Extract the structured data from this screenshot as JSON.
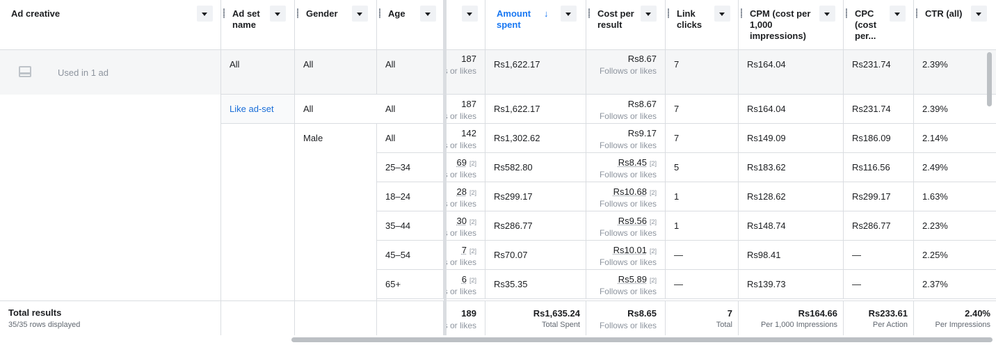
{
  "headers": {
    "ad_creative": "Ad creative",
    "ad_set_name": "Ad set\nname",
    "gender": "Gender",
    "age": "Age",
    "amount_spent": "Amount\nspent",
    "sort_arrow": "↓",
    "cost_per_result": "Cost per\nresult",
    "link_clicks": "Link\nclicks",
    "cpm": "CPM (cost per\n1,000\nimpressions)",
    "cpc": "CPC\n(cost\nper...",
    "ctr": "CTR (all)"
  },
  "creative_row": {
    "label": "Used in 1 ad",
    "ad_set": "All",
    "gender": "All",
    "age": "All",
    "results": "187",
    "results_sub": "s or likes",
    "amount": "Rs1,622.17",
    "cost": "Rs8.67",
    "cost_sub": "Follows or likes",
    "clicks": "7",
    "cpm": "Rs164.04",
    "cpc": "Rs231.74",
    "ctr": "2.39%"
  },
  "rows": [
    {
      "ad_set": "Like ad-set",
      "gender": "All",
      "age": "All",
      "results": "187",
      "flag": "",
      "amount": "Rs1,622.17",
      "cost": "Rs8.67",
      "cost_flag": "",
      "clicks": "7",
      "cpm": "Rs164.04",
      "cpc": "Rs231.74",
      "ctr": "2.39%"
    },
    {
      "ad_set": "",
      "gender": "Male",
      "age": "All",
      "results": "142",
      "flag": "",
      "amount": "Rs1,302.62",
      "cost": "Rs9.17",
      "cost_flag": "",
      "clicks": "7",
      "cpm": "Rs149.09",
      "cpc": "Rs186.09",
      "ctr": "2.14%"
    },
    {
      "ad_set": "",
      "gender": "",
      "age": "25–34",
      "results": "69",
      "flag": "[2]",
      "amount": "Rs582.80",
      "cost": "Rs8.45",
      "cost_flag": "[2]",
      "clicks": "5",
      "cpm": "Rs183.62",
      "cpc": "Rs116.56",
      "ctr": "2.49%"
    },
    {
      "ad_set": "",
      "gender": "",
      "age": "18–24",
      "results": "28",
      "flag": "[2]",
      "amount": "Rs299.17",
      "cost": "Rs10.68",
      "cost_flag": "[2]",
      "clicks": "1",
      "cpm": "Rs128.62",
      "cpc": "Rs299.17",
      "ctr": "1.63%"
    },
    {
      "ad_set": "",
      "gender": "",
      "age": "35–44",
      "results": "30",
      "flag": "[2]",
      "amount": "Rs286.77",
      "cost": "Rs9.56",
      "cost_flag": "[2]",
      "clicks": "1",
      "cpm": "Rs148.74",
      "cpc": "Rs286.77",
      "ctr": "2.23%"
    },
    {
      "ad_set": "",
      "gender": "",
      "age": "45–54",
      "results": "7",
      "flag": "[2]",
      "amount": "Rs70.07",
      "cost": "Rs10.01",
      "cost_flag": "[2]",
      "clicks": "—",
      "cpm": "Rs98.41",
      "cpc": "—",
      "ctr": "2.25%"
    },
    {
      "ad_set": "",
      "gender": "",
      "age": "65+",
      "results": "6",
      "flag": "[2]",
      "amount": "Rs35.35",
      "cost": "Rs5.89",
      "cost_flag": "[2]",
      "clicks": "—",
      "cpm": "Rs139.73",
      "cpc": "—",
      "ctr": "2.37%"
    }
  ],
  "results_sub": "s or likes",
  "cost_sub": "Follows or likes",
  "totals": {
    "label": "Total results",
    "rows_displayed": "35/35 rows displayed",
    "results": "189",
    "results_sub": "s or likes",
    "amount": "Rs1,635.24",
    "amount_sub": "Total Spent",
    "cost": "Rs8.65",
    "cost_sub": "Follows or likes",
    "clicks": "7",
    "clicks_sub": "Total",
    "cpm": "Rs164.66",
    "cpm_sub": "Per 1,000 Impressions",
    "cpc": "Rs233.61",
    "cpc_sub": "Per Action",
    "ctr": "2.40%",
    "ctr_sub": "Per Impressions"
  },
  "colors": {
    "accent": "#1877f2",
    "link": "#1a6ed8",
    "border": "#dadde1",
    "muted": "#8d949e"
  }
}
